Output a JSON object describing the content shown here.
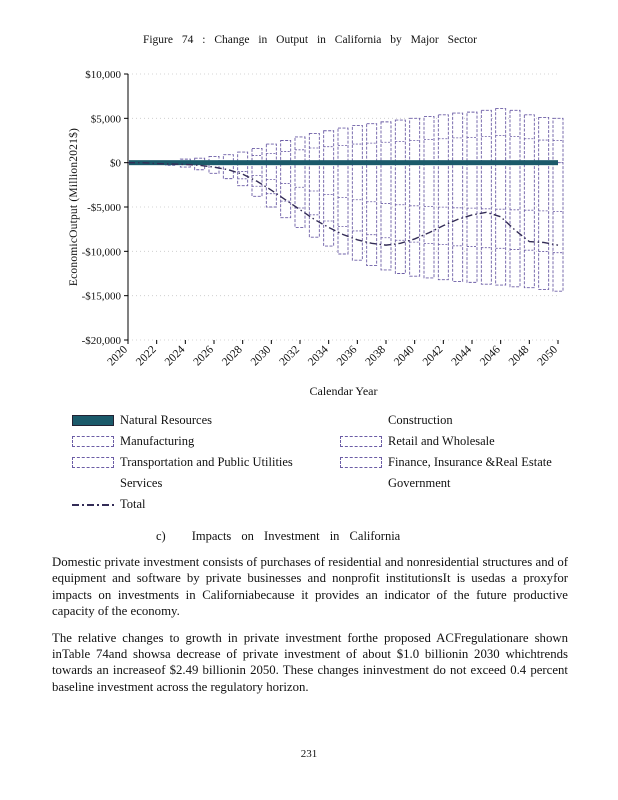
{
  "figure": {
    "title": "Figure 74 : Change in Output in California by Major Sector",
    "y_axis_label": "EconomicOutput (Million2021$)",
    "x_axis_label": "Calendar Year"
  },
  "chart_data": {
    "type": "bar",
    "subtype": "stacked-floating-bars-with-total-line",
    "title": "Change in Output in California by Major Sector",
    "xlabel": "Calendar Year",
    "ylabel": "Economic Output (Million 2021$)",
    "ylim": [
      -20000,
      10000
    ],
    "yticks": [
      10000,
      5000,
      0,
      -5000,
      -10000,
      -15000,
      -20000
    ],
    "ytick_labels": [
      "$10,000",
      "$5,000",
      "$0",
      "-$5,000",
      "-$10,000",
      "-$15,000",
      "-$20,000"
    ],
    "years": [
      2020,
      2021,
      2022,
      2023,
      2024,
      2025,
      2026,
      2027,
      2028,
      2029,
      2030,
      2031,
      2032,
      2033,
      2034,
      2035,
      2036,
      2037,
      2038,
      2039,
      2040,
      2041,
      2042,
      2043,
      2044,
      2045,
      2046,
      2047,
      2048,
      2049,
      2050
    ],
    "xtick_years": [
      2020,
      2022,
      2024,
      2026,
      2028,
      2030,
      2032,
      2034,
      2036,
      2038,
      2040,
      2042,
      2044,
      2046,
      2048,
      2050
    ],
    "stack_top": [
      0,
      0,
      100,
      200,
      400,
      500,
      700,
      900,
      1200,
      1600,
      2100,
      2500,
      2900,
      3300,
      3600,
      3900,
      4200,
      4400,
      4600,
      4800,
      5000,
      5200,
      5400,
      5600,
      5700,
      5900,
      6100,
      5900,
      5400,
      5100,
      5000
    ],
    "stack_bottom": [
      0,
      0,
      -100,
      -300,
      -500,
      -800,
      -1200,
      -1800,
      -2600,
      -3800,
      -5000,
      -6200,
      -7300,
      -8400,
      -9400,
      -10300,
      -11000,
      -11600,
      -12100,
      -12500,
      -12800,
      -13000,
      -13200,
      -13400,
      -13500,
      -13700,
      -13800,
      -14000,
      -14100,
      -14300,
      -14500
    ],
    "total": [
      0,
      0,
      -100,
      -150,
      -200,
      -300,
      -500,
      -800,
      -1300,
      -2100,
      -3100,
      -4200,
      -5300,
      -6400,
      -7300,
      -8100,
      -8700,
      -9100,
      -9300,
      -9100,
      -8600,
      -7900,
      -7100,
      -6400,
      -5900,
      -5600,
      -6100,
      -7600,
      -8900,
      -9000,
      -9300
    ],
    "series_names": [
      "Natural Resources",
      "Construction",
      "Manufacturing",
      "Retail and Wholesale",
      "Transportation and Public Utilities",
      "Finance, Insurance & Real Estate",
      "Services",
      "Government",
      "Total"
    ],
    "bar_color": "#6b5ca5",
    "total_color": "#332c56",
    "zero_band_color": "#1b5a6a",
    "grid": true,
    "legend_position": "below"
  },
  "legend": {
    "items": [
      {
        "label": "Natural Resources",
        "swatch": "fill"
      },
      {
        "label": "Construction",
        "swatch": "none"
      },
      {
        "label": "Manufacturing",
        "swatch": "dash"
      },
      {
        "label": "Retail and Wholesale",
        "swatch": "dash"
      },
      {
        "label": "Transportation and Public Utilities",
        "swatch": "dash"
      },
      {
        "label": "Finance, Insurance &Real Estate",
        "swatch": "dash"
      },
      {
        "label": "Services",
        "swatch": "none"
      },
      {
        "label": "Government",
        "swatch": "none"
      },
      {
        "label": "Total",
        "swatch": "line"
      }
    ]
  },
  "section": {
    "label": "c)",
    "title": "Impacts on Investment in California"
  },
  "body": {
    "paragraphs": [
      "Domestic private investment consists of purchases of residential and nonresidential structures and of equipment and software by private businesses and nonprofit institutionsIt is usedas a proxyfor impacts on investments in Californiabecause it provides an indicator of the future productive capacity of the economy.",
      "The relative changes to growth in private investment forthe proposed ACFregulationare shown inTable 74and showsa decrease of private investment of about $1.0 billionin 2030 whichtrends towards an increaseof $2.49 billionin 2050. These changes ininvestment do not exceed 0.4 percent baseline investment across the regulatory horizon."
    ]
  },
  "footer": {
    "page_number": "231"
  }
}
